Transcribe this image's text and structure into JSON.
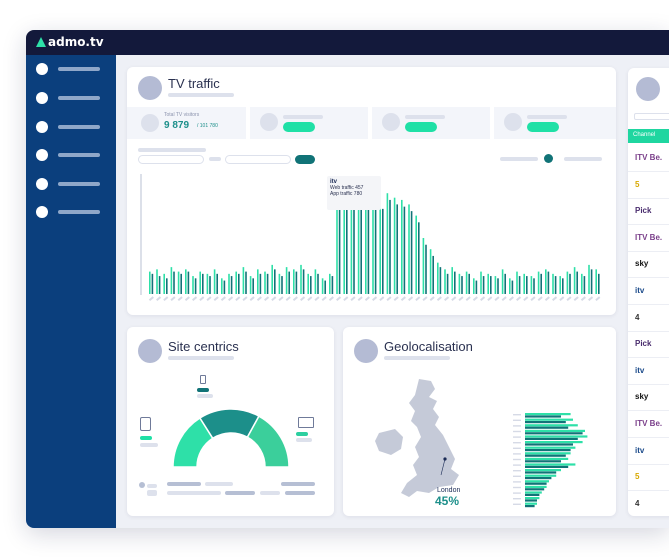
{
  "app": {
    "brand": "admo.tv"
  },
  "sidebar": {
    "item_count": 6
  },
  "tv_traffic": {
    "title": "TV traffic",
    "stat_label": "Total TV visitors",
    "stat_value": "9 879",
    "stat_total": "/ 101 780",
    "tooltip": {
      "channel_logo": "itv",
      "web_traffic": "Web traffic 457",
      "app_traffic": "App traffic 780"
    }
  },
  "site_centrics": {
    "title": "Site centrics"
  },
  "geolocalisation": {
    "title": "Geolocalisation",
    "city": "London",
    "percent": "45%"
  },
  "channels_panel": {
    "column_header": "Channel",
    "items": [
      "ITV Be.",
      "5",
      "Pick",
      "ITV Be.",
      "sky",
      "itv",
      "4",
      "Pick",
      "itv",
      "sky",
      "ITV Be.",
      "itv",
      "5",
      "4"
    ]
  },
  "colors": {
    "topbar": "#13193b",
    "sidebar": "#0b3f7d",
    "accent": "#1fe0a6",
    "teal": "#1c8f8a",
    "dark_teal": "#117377"
  },
  "chart_data": {
    "type": "bar",
    "series": [
      {
        "name": "Web traffic",
        "values": [
          20,
          22,
          18,
          24,
          20,
          22,
          16,
          20,
          18,
          22,
          14,
          18,
          20,
          24,
          16,
          22,
          20,
          26,
          18,
          24,
          22,
          26,
          18,
          22,
          14,
          18,
          86,
          84,
          90,
          86,
          88,
          84,
          82,
          90,
          86,
          84,
          80,
          70,
          50,
          40,
          28,
          22,
          24,
          18,
          20,
          14,
          20,
          18,
          16,
          22,
          14,
          20,
          18,
          16,
          20,
          22,
          18,
          16,
          20,
          24,
          18,
          26,
          22
        ]
      },
      {
        "name": "App traffic",
        "values": [
          18,
          16,
          14,
          20,
          18,
          20,
          14,
          18,
          16,
          18,
          12,
          16,
          18,
          20,
          14,
          18,
          18,
          22,
          16,
          20,
          20,
          22,
          16,
          18,
          12,
          16,
          80,
          78,
          84,
          80,
          82,
          78,
          76,
          84,
          80,
          78,
          74,
          64,
          44,
          34,
          24,
          18,
          20,
          16,
          18,
          12,
          16,
          16,
          14,
          18,
          12,
          16,
          16,
          14,
          18,
          20,
          16,
          14,
          18,
          20,
          16,
          22,
          18
        ]
      }
    ]
  },
  "geo_bars": {
    "type": "bar",
    "series": [
      {
        "name": "Web",
        "values": [
          38,
          40,
          44,
          50,
          52,
          48,
          42,
          38,
          36,
          42,
          30,
          26,
          20,
          18,
          14,
          12,
          10
        ]
      },
      {
        "name": "App",
        "values": [
          30,
          34,
          36,
          48,
          44,
          40,
          38,
          34,
          30,
          36,
          26,
          22,
          18,
          16,
          12,
          10,
          8
        ]
      }
    ]
  },
  "site_centrics_gauge": {
    "segments": [
      0.32,
      0.34,
      0.34
    ]
  }
}
